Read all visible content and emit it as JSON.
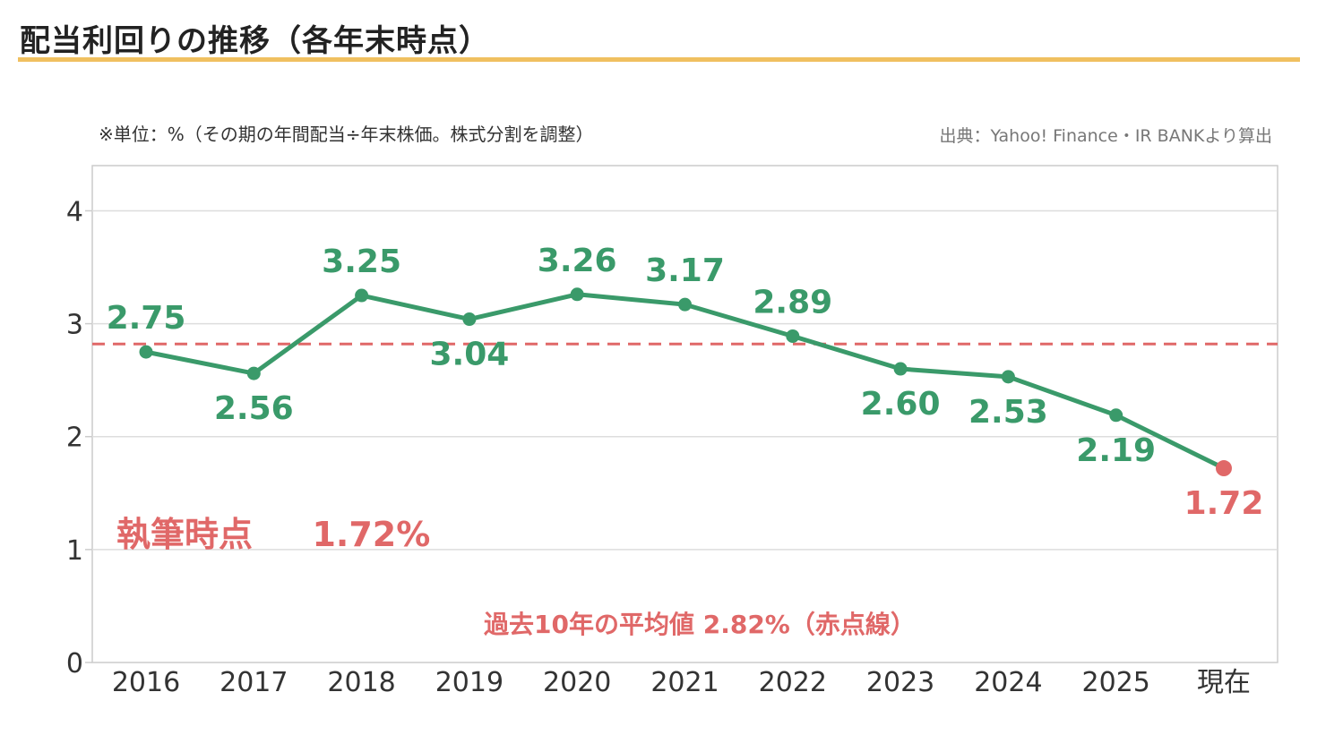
{
  "header": {
    "title": "配当利回りの推移（各年末時点）"
  },
  "notes": {
    "unit": "※単位：%（その期の年間配当÷年末株価。株式分割を調整）",
    "source": "出典：Yahoo! Finance・IR BANKより算出",
    "current_label": "執筆時点",
    "current_value": "1.72%",
    "average": "過去10年の平均値 2.82%（赤点線）"
  },
  "colors": {
    "line": "#3a9a6a",
    "highlight": "#e06868",
    "title_rule": "#f0c060",
    "grid": "#dddddd",
    "axis": "#cccccc"
  },
  "chart_data": {
    "type": "line",
    "title": "配当利回りの推移（各年末時点）",
    "xlabel": "",
    "ylabel": "",
    "categories": [
      "2016",
      "2017",
      "2018",
      "2019",
      "2020",
      "2021",
      "2022",
      "2023",
      "2024",
      "2025",
      "現在"
    ],
    "series": [
      {
        "values": [
          2.75,
          2.56,
          3.25,
          3.04,
          3.26,
          3.17,
          2.89,
          2.6,
          2.53,
          2.19,
          1.72
        ],
        "labels": [
          "2.75",
          "2.56",
          "3.25",
          "3.04",
          "3.26",
          "3.17",
          "2.89",
          "2.60",
          "2.53",
          "2.19",
          "1.72"
        ]
      }
    ],
    "highlight_last_point": true,
    "reference_line": {
      "value": 2.82,
      "style": "dashed",
      "color": "#e06868"
    },
    "ylim": [
      0,
      4.4
    ],
    "yticks": [
      0,
      1,
      2,
      3,
      4
    ],
    "grid": true,
    "legend": "none"
  }
}
